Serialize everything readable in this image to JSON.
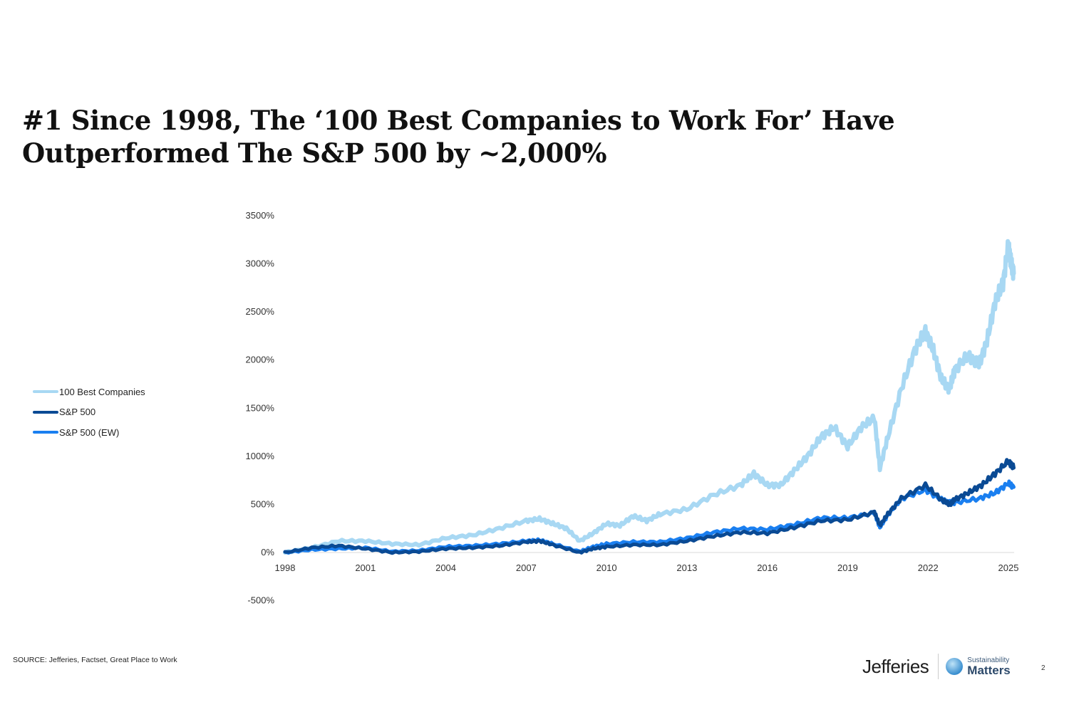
{
  "title": "#1 Since 1998, The ‘100 Best Companies to Work For’ Have Outperformed The S&P 500 by ~2,000%",
  "source": "SOURCE: Jefferies, Factset, Great Place to Work",
  "footer": {
    "brand": "Jefferies",
    "sustainability_small": "Sustainability",
    "sustainability_large": "Matters",
    "page_number": "2"
  },
  "chart_data": {
    "type": "line",
    "title": "",
    "xlabel": "",
    "ylabel": "",
    "xlim": [
      1998,
      2025.3
    ],
    "ylim": [
      -500,
      3500
    ],
    "x_ticks": [
      "1998",
      "2001",
      "2004",
      "2007",
      "2010",
      "2013",
      "2016",
      "2019",
      "2022",
      "2025"
    ],
    "y_ticks": [
      "3500%",
      "3000%",
      "2500%",
      "2000%",
      "1500%",
      "1000%",
      "500%",
      "0%",
      "-500%"
    ],
    "legend_position": "left",
    "grid": false,
    "series": [
      {
        "name": "100 Best Companies",
        "color": "#a8d8f3",
        "x": [
          1998,
          1999,
          2000,
          2001,
          2002,
          2003,
          2004,
          2005,
          2006,
          2007,
          2007.5,
          2008,
          2008.5,
          2009,
          2009.5,
          2010,
          2010.5,
          2011,
          2011.5,
          2012,
          2013,
          2014,
          2015,
          2015.5,
          2016,
          2016.5,
          2017,
          2017.5,
          2018,
          2018.5,
          2019,
          2019.5,
          2020,
          2020.2,
          2020.5,
          2021,
          2021.5,
          2021.9,
          2022.2,
          2022.5,
          2022.8,
          2023,
          2023.5,
          2023.9,
          2024.2,
          2024.5,
          2024.8,
          2025,
          2025.1,
          2025.2
        ],
        "y": [
          0,
          50,
          120,
          120,
          90,
          80,
          150,
          180,
          250,
          330,
          350,
          300,
          250,
          120,
          200,
          300,
          280,
          380,
          330,
          400,
          450,
          600,
          700,
          820,
          700,
          700,
          850,
          1000,
          1200,
          1300,
          1100,
          1300,
          1400,
          880,
          1200,
          1700,
          2100,
          2300,
          2100,
          1800,
          1700,
          1900,
          2050,
          1950,
          2200,
          2600,
          2800,
          3200,
          3000,
          2900
        ]
      },
      {
        "name": "S&P 500",
        "color": "#0a4a94",
        "x": [
          1998,
          1999,
          2000,
          2001,
          2002,
          2003,
          2004,
          2005,
          2006,
          2007,
          2007.5,
          2008,
          2009,
          2009.5,
          2010,
          2011,
          2012,
          2013,
          2014,
          2015,
          2016,
          2017,
          2018,
          2019,
          2020,
          2020.2,
          2020.5,
          2021,
          2021.9,
          2022.5,
          2022.8,
          2023,
          2023.5,
          2024,
          2024.5,
          2025,
          2025.2
        ],
        "y": [
          0,
          50,
          70,
          40,
          0,
          10,
          40,
          50,
          70,
          110,
          120,
          80,
          0,
          40,
          60,
          80,
          80,
          120,
          170,
          210,
          200,
          260,
          330,
          340,
          420,
          280,
          400,
          560,
          700,
          550,
          500,
          550,
          620,
          700,
          820,
          950,
          880
        ]
      },
      {
        "name": "S&P 500 (EW)",
        "color": "#1a7ff0",
        "x": [
          1998,
          1999,
          2000,
          2001,
          2002,
          2003,
          2004,
          2005,
          2006,
          2007,
          2007.5,
          2008,
          2009,
          2009.5,
          2010,
          2011,
          2012,
          2013,
          2014,
          2015,
          2016,
          2017,
          2018,
          2019,
          2020,
          2020.2,
          2020.5,
          2021,
          2021.9,
          2022.5,
          2022.8,
          2023,
          2023.9,
          2024.5,
          2025,
          2025.2
        ],
        "y": [
          0,
          30,
          40,
          50,
          10,
          20,
          60,
          70,
          90,
          120,
          130,
          90,
          10,
          60,
          90,
          110,
          110,
          150,
          210,
          250,
          240,
          290,
          360,
          360,
          410,
          260,
          390,
          560,
          650,
          550,
          520,
          520,
          560,
          620,
          720,
          680
        ]
      }
    ]
  }
}
